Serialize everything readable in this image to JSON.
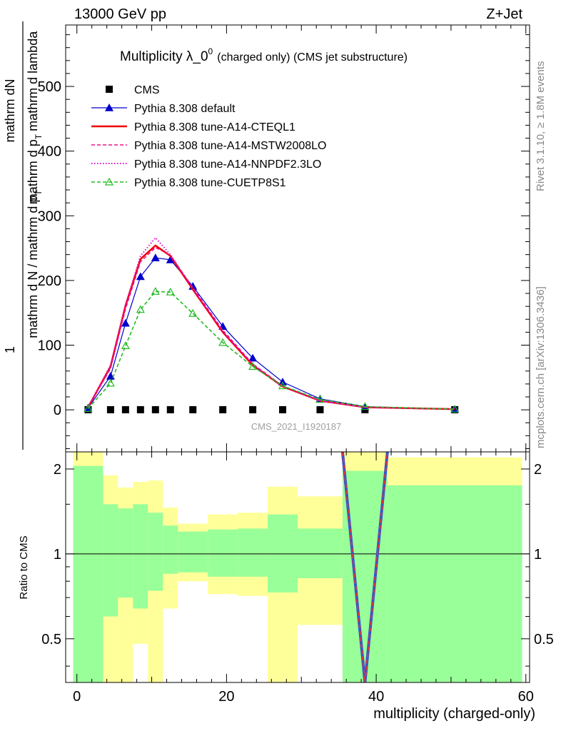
{
  "header": {
    "energy_label": "13000 GeV pp",
    "process_label": "Z+Jet",
    "side_rivet": "Rivet 3.1.10, ≥ 1.8M events",
    "side_mcplots": "mcplots.cern.ch [arXiv:1306.3436]",
    "analysis_id": "CMS_2021_I1920187"
  },
  "chart_data": [
    {
      "type": "line",
      "title": "Multiplicity λ_0",
      "title_sup": "0",
      "title_suffix": "(charged only) (CMS jet substructure)",
      "ylabel_numerator": "1",
      "ylabel_numerator_2": "mathrm dN",
      "ylabel_denominator": "mathrm d N / mathrm d p",
      "ylabel_denominator_2": "mathrm d p",
      "ylabel_sub": "T",
      "ylabel_tail": "mathrm d lambda",
      "xlim": [
        -1.5,
        60.5
      ],
      "ylim": [
        -65,
        595
      ],
      "y_ticks": [
        0,
        100,
        200,
        300,
        400,
        500
      ],
      "y_tick_labels": [
        "0",
        "100",
        "200",
        "300",
        "400",
        "500"
      ],
      "legend_position": "top-left",
      "series": [
        {
          "name": "CMS",
          "color": "#000000",
          "marker": "square",
          "line": "none",
          "x": [
            1.5,
            4.5,
            6.5,
            8.5,
            10.5,
            12.5,
            15.5,
            19.5,
            23.5,
            27.5,
            32.5,
            38.5,
            50.5
          ],
          "y": [
            0.2,
            0.2,
            0.2,
            0.2,
            0.2,
            0.2,
            0.2,
            0.2,
            0.2,
            0.2,
            0.2,
            0.2,
            0.2
          ]
        },
        {
          "name": "Pythia 8.308 default",
          "color": "#0000cc",
          "marker": "triangle-filled",
          "line": "solid",
          "x": [
            1.5,
            4.5,
            6.5,
            8.5,
            10.5,
            12.5,
            15.5,
            19.5,
            23.5,
            27.5,
            32.5,
            38.5,
            50.5
          ],
          "y": [
            3,
            52,
            134,
            206,
            235,
            232,
            191,
            129,
            80,
            43,
            17,
            5,
            1
          ]
        },
        {
          "name": "Pythia 8.308 tune-A14-CTEQL1",
          "color": "#ee0000",
          "marker": "none",
          "line": "solid-thick",
          "x": [
            1.5,
            4.5,
            6.5,
            8.5,
            10.5,
            12.5,
            15.5,
            19.5,
            23.5,
            27.5,
            32.5,
            38.5,
            50.5
          ],
          "y": [
            4,
            67,
            161,
            233,
            254,
            238,
            186,
            120,
            69,
            36,
            14,
            4,
            1
          ]
        },
        {
          "name": "Pythia 8.308 tune-A14-MSTW2008LO",
          "color": "#ee1188",
          "marker": "none",
          "line": "dashed",
          "x": [
            1.5,
            4.5,
            6.5,
            8.5,
            10.5,
            12.5,
            15.5,
            19.5,
            23.5,
            27.5,
            32.5,
            38.5,
            50.5
          ],
          "y": [
            4,
            64,
            156,
            229,
            251,
            239,
            189,
            123,
            71,
            37,
            14,
            4,
            1
          ]
        },
        {
          "name": "Pythia 8.308 tune-A14-NNPDF2.3LO",
          "color": "#dd11cc",
          "marker": "none",
          "line": "dotted",
          "x": [
            1.5,
            4.5,
            6.5,
            8.5,
            10.5,
            12.5,
            15.5,
            19.5,
            23.5,
            27.5,
            32.5,
            38.5,
            50.5
          ],
          "y": [
            4,
            69,
            163,
            238,
            266,
            240,
            187,
            121,
            70,
            36,
            14,
            4,
            1
          ]
        },
        {
          "name": "Pythia 8.308 tune-CUETP8S1",
          "color": "#22bb22",
          "marker": "triangle-open",
          "line": "dashed",
          "x": [
            1.5,
            4.5,
            6.5,
            8.5,
            10.5,
            12.5,
            15.5,
            19.5,
            23.5,
            27.5,
            32.5,
            38.5,
            50.5
          ],
          "y": [
            2,
            41,
            99,
            155,
            183,
            182,
            149,
            104,
            67,
            37,
            16,
            5,
            1
          ]
        }
      ]
    },
    {
      "type": "line",
      "ylabel": "Ratio to CMS",
      "xlabel": "multiplicity (charged-only)",
      "xlim": [
        -1.5,
        60.5
      ],
      "ylim": [
        0.35,
        2.3
      ],
      "y_scale": "log",
      "x_ticks": [
        0,
        20,
        40,
        60
      ],
      "x_tick_labels": [
        "0",
        "20",
        "40",
        "60"
      ],
      "y_ticks": [
        0.5,
        1,
        2
      ],
      "y_tick_labels": [
        "0.5",
        "1",
        "2"
      ],
      "reference_line": 1,
      "band_colors": {
        "stat": "#99ff99",
        "total": "#ffff99"
      },
      "bins": [
        {
          "x_low": -0.5,
          "x_high": 3.5,
          "inner": [
            0.35,
            2.05
          ],
          "outer": [
            0.35,
            2.3
          ]
        },
        {
          "x_low": 3.5,
          "x_high": 5.5,
          "inner": [
            0.6,
            1.5
          ],
          "outer": [
            0.35,
            1.9
          ]
        },
        {
          "x_low": 5.5,
          "x_high": 7.5,
          "inner": [
            0.7,
            1.45
          ],
          "outer": [
            0.35,
            1.72
          ]
        },
        {
          "x_low": 7.5,
          "x_high": 9.5,
          "inner": [
            0.64,
            1.5
          ],
          "outer": [
            0.48,
            1.8
          ]
        },
        {
          "x_low": 9.5,
          "x_high": 11.5,
          "inner": [
            0.74,
            1.4
          ],
          "outer": [
            0.35,
            1.82
          ]
        },
        {
          "x_low": 11.5,
          "x_high": 13.5,
          "inner": [
            0.85,
            1.26
          ],
          "outer": [
            0.64,
            1.46
          ]
        },
        {
          "x_low": 13.5,
          "x_high": 17.5,
          "inner": [
            0.86,
            1.2
          ],
          "outer": [
            0.8,
            1.28
          ]
        },
        {
          "x_low": 17.5,
          "x_high": 21.5,
          "inner": [
            0.83,
            1.22
          ],
          "outer": [
            0.72,
            1.38
          ]
        },
        {
          "x_low": 21.5,
          "x_high": 25.5,
          "inner": [
            0.83,
            1.23
          ],
          "outer": [
            0.71,
            1.4
          ]
        },
        {
          "x_low": 25.5,
          "x_high": 29.5,
          "inner": [
            0.73,
            1.38
          ],
          "outer": [
            0.35,
            1.73
          ]
        },
        {
          "x_low": 29.5,
          "x_high": 35.5,
          "inner": [
            0.82,
            1.23
          ],
          "outer": [
            0.56,
            1.6
          ]
        },
        {
          "x_low": 35.5,
          "x_high": 41.5,
          "inner": [
            0.35,
            1.97
          ],
          "outer": [
            0.35,
            2.3
          ]
        },
        {
          "x_low": 41.5,
          "x_high": 59.5,
          "inner": [
            0.35,
            1.75
          ],
          "outer": [
            0.35,
            2.2
          ]
        }
      ],
      "mc_ratio_curve": {
        "x": [
          35.5,
          38.5,
          41.5
        ],
        "y": [
          2.3,
          0.35,
          2.3
        ],
        "color": "#dd3344"
      }
    }
  ]
}
